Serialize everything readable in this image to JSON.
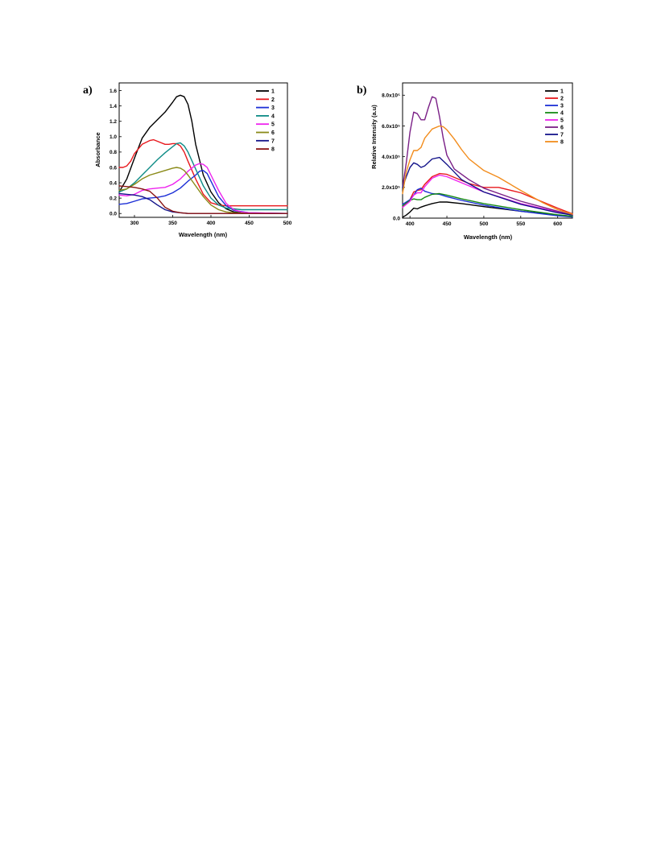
{
  "chart_data": [
    {
      "panel": "a)",
      "type": "line",
      "xlabel": "Wavelength (nm)",
      "ylabel": "Absorbance",
      "xlim": [
        280,
        500
      ],
      "ylim": [
        -0.05,
        1.7
      ],
      "xticks": [
        300,
        350,
        400,
        450,
        500
      ],
      "yticks": [
        0.0,
        0.2,
        0.4,
        0.6,
        0.8,
        1.0,
        1.2,
        1.4,
        1.6
      ],
      "ytick_labels": [
        "0.0",
        "0.2",
        "0.4",
        "0.6",
        "0.8",
        "1.0",
        "1.2",
        "1.4",
        "1.6"
      ],
      "grid": false,
      "legend_position": "top-right",
      "series": [
        {
          "name": "1",
          "color": "#000000",
          "x": [
            280,
            290,
            300,
            310,
            320,
            330,
            340,
            350,
            355,
            360,
            365,
            370,
            375,
            380,
            390,
            400,
            410,
            420,
            430,
            440,
            460,
            500
          ],
          "y": [
            0.28,
            0.45,
            0.72,
            0.98,
            1.12,
            1.22,
            1.32,
            1.45,
            1.52,
            1.54,
            1.52,
            1.42,
            1.2,
            0.9,
            0.5,
            0.28,
            0.14,
            0.06,
            0.02,
            0.01,
            0.0,
            0.0
          ]
        },
        {
          "name": "2",
          "color": "#e8191d",
          "x": [
            280,
            285,
            290,
            295,
            300,
            310,
            320,
            325,
            330,
            340,
            345,
            350,
            355,
            360,
            365,
            370,
            380,
            390,
            400,
            410,
            420,
            430,
            440,
            450,
            500
          ],
          "y": [
            0.6,
            0.6,
            0.62,
            0.68,
            0.78,
            0.9,
            0.95,
            0.96,
            0.94,
            0.9,
            0.9,
            0.91,
            0.91,
            0.88,
            0.8,
            0.68,
            0.45,
            0.25,
            0.14,
            0.11,
            0.1,
            0.1,
            0.1,
            0.1,
            0.1
          ]
        },
        {
          "name": "3",
          "color": "#1c2fd6",
          "x": [
            280,
            290,
            300,
            310,
            320,
            330,
            340,
            350,
            360,
            370,
            380,
            385,
            390,
            395,
            400,
            410,
            420,
            430,
            450,
            500
          ],
          "y": [
            0.12,
            0.13,
            0.16,
            0.19,
            0.2,
            0.21,
            0.23,
            0.27,
            0.33,
            0.42,
            0.5,
            0.55,
            0.56,
            0.52,
            0.42,
            0.22,
            0.1,
            0.04,
            0.01,
            0.0
          ]
        },
        {
          "name": "4",
          "color": "#0e8c86",
          "x": [
            280,
            290,
            300,
            310,
            320,
            330,
            340,
            350,
            355,
            360,
            365,
            370,
            380,
            390,
            400,
            410,
            420,
            430,
            440,
            450,
            500
          ],
          "y": [
            0.28,
            0.32,
            0.4,
            0.5,
            0.6,
            0.7,
            0.79,
            0.87,
            0.91,
            0.92,
            0.88,
            0.8,
            0.58,
            0.36,
            0.2,
            0.11,
            0.07,
            0.06,
            0.05,
            0.05,
            0.05
          ]
        },
        {
          "name": "5",
          "color": "#ee22ee",
          "x": [
            280,
            290,
            300,
            310,
            320,
            330,
            340,
            350,
            360,
            370,
            380,
            385,
            390,
            395,
            400,
            410,
            420,
            430,
            440,
            450,
            500
          ],
          "y": [
            0.24,
            0.23,
            0.25,
            0.3,
            0.32,
            0.33,
            0.34,
            0.38,
            0.45,
            0.55,
            0.63,
            0.65,
            0.64,
            0.6,
            0.5,
            0.3,
            0.13,
            0.05,
            0.02,
            0.01,
            0.0
          ]
        },
        {
          "name": "6",
          "color": "#8a8a18",
          "x": [
            280,
            290,
            300,
            310,
            320,
            330,
            340,
            350,
            355,
            360,
            365,
            370,
            380,
            390,
            400,
            410,
            420,
            430,
            450,
            500
          ],
          "y": [
            0.3,
            0.32,
            0.38,
            0.45,
            0.5,
            0.53,
            0.56,
            0.59,
            0.6,
            0.59,
            0.56,
            0.5,
            0.36,
            0.22,
            0.11,
            0.05,
            0.02,
            0.01,
            0.0,
            0.0
          ]
        },
        {
          "name": "7",
          "color": "#14148a",
          "x": [
            280,
            290,
            300,
            310,
            320,
            330,
            340,
            350,
            360,
            370,
            380,
            400,
            500
          ],
          "y": [
            0.26,
            0.25,
            0.24,
            0.22,
            0.18,
            0.11,
            0.05,
            0.02,
            0.01,
            0.0,
            0.0,
            0.0,
            0.0
          ]
        },
        {
          "name": "8",
          "color": "#8a1414",
          "x": [
            280,
            290,
            300,
            310,
            320,
            330,
            340,
            350,
            360,
            370,
            380,
            400,
            500
          ],
          "y": [
            0.36,
            0.35,
            0.34,
            0.32,
            0.29,
            0.2,
            0.08,
            0.03,
            0.01,
            0.0,
            0.0,
            0.0,
            0.0
          ]
        }
      ]
    },
    {
      "panel": "b)",
      "type": "line",
      "xlabel": "Wavelength (nm)",
      "ylabel": "Relative Intensity (a.u)",
      "xlim": [
        390,
        620
      ],
      "ylim": [
        0,
        880000
      ],
      "xticks": [
        400,
        450,
        500,
        550,
        600
      ],
      "yticks": [
        0,
        200000,
        400000,
        600000,
        800000
      ],
      "ytick_labels": [
        "0.0",
        "2.0x10⁵",
        "4.0x10⁵",
        "6.0x10⁵",
        "8.0x10⁵"
      ],
      "grid": false,
      "legend_position": "top-right",
      "series": [
        {
          "name": "1",
          "color": "#000000",
          "x": [
            390,
            395,
            400,
            405,
            410,
            415,
            420,
            430,
            440,
            450,
            470,
            500,
            550,
            600,
            620
          ],
          "y": [
            5000,
            20000,
            40000,
            65000,
            60000,
            72000,
            80000,
            95000,
            105000,
            105000,
            95000,
            75000,
            45000,
            20000,
            12000
          ]
        },
        {
          "name": "2",
          "color": "#e8191d",
          "x": [
            390,
            400,
            405,
            410,
            415,
            420,
            430,
            440,
            450,
            460,
            480,
            500,
            520,
            550,
            580,
            600,
            620
          ],
          "y": [
            70000,
            120000,
            170000,
            180000,
            185000,
            220000,
            270000,
            290000,
            285000,
            265000,
            225000,
            200000,
            200000,
            165000,
            105000,
            65000,
            28000
          ]
        },
        {
          "name": "3",
          "color": "#1c2fd6",
          "x": [
            390,
            400,
            405,
            410,
            415,
            420,
            430,
            440,
            450,
            470,
            500,
            550,
            600,
            620
          ],
          "y": [
            90000,
            120000,
            150000,
            185000,
            195000,
            175000,
            160000,
            155000,
            140000,
            115000,
            85000,
            45000,
            15000,
            8000
          ]
        },
        {
          "name": "4",
          "color": "#168a16",
          "x": [
            390,
            400,
            405,
            410,
            415,
            420,
            430,
            440,
            450,
            470,
            500,
            550,
            600,
            620
          ],
          "y": [
            80000,
            115000,
            125000,
            120000,
            120000,
            135000,
            155000,
            160000,
            150000,
            125000,
            95000,
            55000,
            22000,
            12000
          ]
        },
        {
          "name": "5",
          "color": "#ee22ee",
          "x": [
            390,
            400,
            405,
            410,
            415,
            420,
            430,
            440,
            450,
            470,
            500,
            550,
            600,
            620
          ],
          "y": [
            70000,
            110000,
            150000,
            165000,
            165000,
            205000,
            260000,
            280000,
            270000,
            230000,
            170000,
            95000,
            40000,
            20000
          ]
        },
        {
          "name": "6",
          "color": "#7a1f86",
          "x": [
            390,
            395,
            400,
            405,
            410,
            415,
            420,
            425,
            430,
            435,
            440,
            445,
            450,
            460,
            480,
            500,
            550,
            600,
            620
          ],
          "y": [
            200000,
            360000,
            560000,
            690000,
            680000,
            640000,
            640000,
            720000,
            790000,
            780000,
            660000,
            520000,
            410000,
            320000,
            250000,
            195000,
            110000,
            45000,
            22000
          ]
        },
        {
          "name": "7",
          "color": "#14148a",
          "x": [
            390,
            395,
            400,
            405,
            410,
            415,
            420,
            430,
            440,
            450,
            470,
            500,
            550,
            600,
            620
          ],
          "y": [
            200000,
            270000,
            330000,
            360000,
            350000,
            330000,
            340000,
            385000,
            395000,
            350000,
            250000,
            170000,
            90000,
            35000,
            20000
          ]
        },
        {
          "name": "8",
          "color": "#f28c1c",
          "x": [
            390,
            395,
            400,
            405,
            410,
            415,
            420,
            430,
            440,
            445,
            450,
            460,
            470,
            480,
            500,
            520,
            550,
            580,
            600,
            620
          ],
          "y": [
            160000,
            300000,
            380000,
            440000,
            440000,
            460000,
            520000,
            580000,
            600000,
            595000,
            575000,
            515000,
            445000,
            385000,
            310000,
            265000,
            180000,
            100000,
            55000,
            25000
          ]
        }
      ]
    }
  ]
}
